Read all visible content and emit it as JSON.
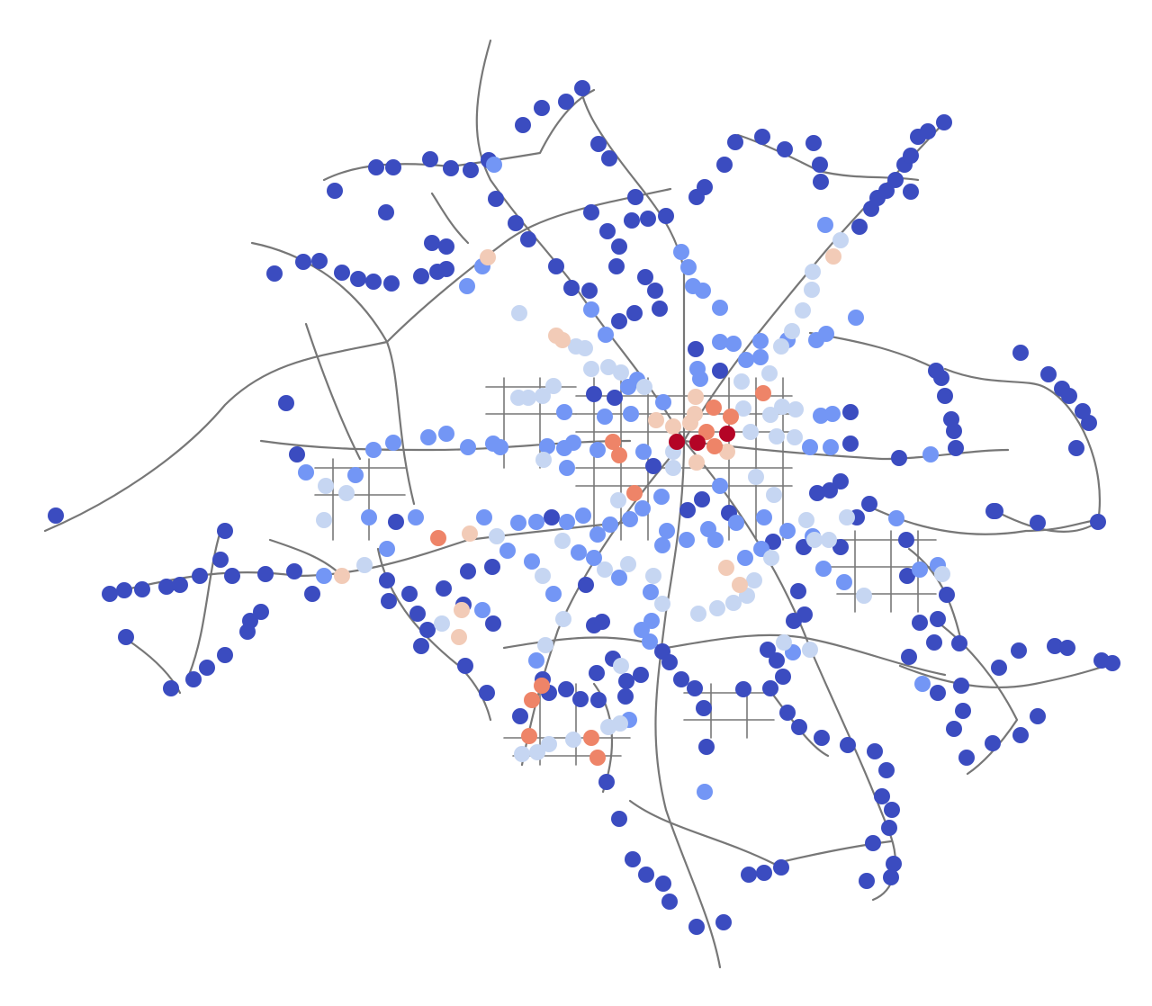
{
  "map": {
    "type": "network-stop-intensity",
    "colors": {
      "road": "#777777",
      "level_0": "#3b4cc0",
      "level_1": "#7396f5",
      "level_2": "#c6d6f2",
      "level_3": "#f2cbb7",
      "level_4": "#ee8468",
      "level_5": "#b40426"
    }
  }
}
